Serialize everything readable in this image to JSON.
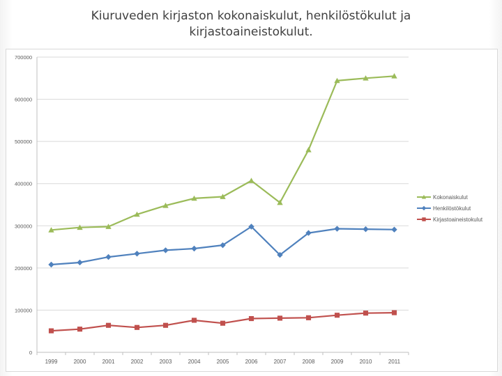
{
  "title": "Kiuruveden kirjaston kokonaiskulut, henkilöstökulut ja kirjastoaineistokulut.",
  "chart_data": {
    "type": "line",
    "title": "",
    "xlabel": "",
    "ylabel": "",
    "x": [
      "1999",
      "2000",
      "2001",
      "2002",
      "2003",
      "2004",
      "2005",
      "2006",
      "2007",
      "2008",
      "2009",
      "2010",
      "2011"
    ],
    "ylim": [
      0,
      700000
    ],
    "yticks": [
      0,
      100000,
      200000,
      300000,
      400000,
      500000,
      600000,
      700000
    ],
    "ytick_labels": [
      "0",
      "100000",
      "200000",
      "300000",
      "400000",
      "500000",
      "600000",
      "700000"
    ],
    "grid": true,
    "legend_position": "right",
    "series": [
      {
        "name": "Kokonaiskulut",
        "color": "#9bbb59",
        "marker": "triangle",
        "values": [
          290000,
          296000,
          298000,
          327000,
          348000,
          365000,
          369000,
          407000,
          355000,
          480000,
          644000,
          650000,
          655000
        ]
      },
      {
        "name": "Henkilöstökulut",
        "color": "#4f81bd",
        "marker": "diamond",
        "values": [
          208000,
          213000,
          226000,
          234000,
          242000,
          246000,
          254000,
          298000,
          231000,
          283000,
          293000,
          292000,
          291000
        ]
      },
      {
        "name": "Kirjastoaineistokulut",
        "color": "#c0504d",
        "marker": "square",
        "values": [
          51000,
          55000,
          64000,
          59000,
          64000,
          76000,
          69000,
          80000,
          81000,
          82000,
          88000,
          93000,
          94000
        ]
      }
    ]
  }
}
